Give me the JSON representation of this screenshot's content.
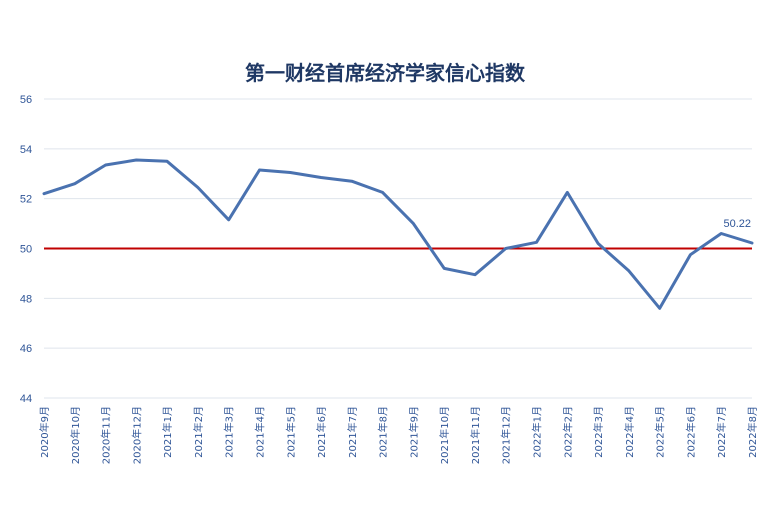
{
  "chart_data": {
    "type": "line",
    "title": "第一财经首席经济学家信心指数",
    "xlabel": "",
    "ylabel": "",
    "ylim": [
      44,
      56
    ],
    "yticks": [
      "44",
      "46",
      "48",
      "50",
      "52",
      "54",
      "56"
    ],
    "grid": true,
    "reference_line": {
      "value": 50,
      "color": "#c00000"
    },
    "categories": [
      "2020年9月",
      "2020年10月",
      "2020年11月",
      "2020年12月",
      "2021年1月",
      "2021年2月",
      "2021年3月",
      "2021年4月",
      "2021年5月",
      "2021年6月",
      "2021年7月",
      "2021年8月",
      "2021年9月",
      "2021年10月",
      "2021年11月",
      "2021年12月",
      "2022年1月",
      "2022年2月",
      "2022年3月",
      "2022年4月",
      "2022年5月",
      "2022年6月",
      "2022年7月",
      "2022年8月"
    ],
    "series": [
      {
        "color": "#4a72b0",
        "values": [
          52.2,
          52.6,
          53.35,
          53.55,
          53.5,
          52.45,
          51.15,
          53.15,
          53.05,
          52.85,
          52.7,
          52.25,
          51.0,
          49.2,
          48.95,
          50.0,
          50.25,
          52.25,
          50.2,
          49.1,
          47.6,
          49.75,
          50.6,
          50.22
        ]
      }
    ],
    "data_labels": [
      {
        "index": 23,
        "text": "50.22"
      }
    ]
  }
}
